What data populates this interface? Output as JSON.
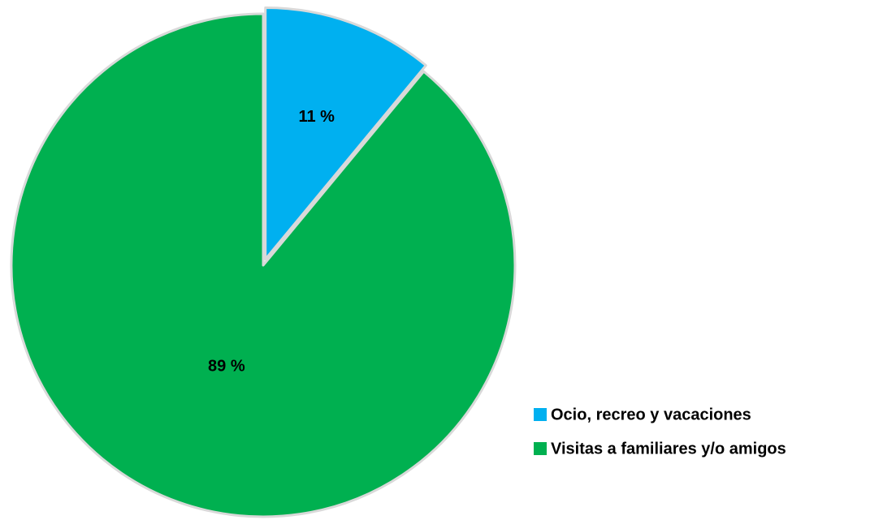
{
  "chart_data": {
    "type": "pie",
    "categories": [
      "Ocio, recreo y vacaciones",
      "Visitas a familiares y/o amigos"
    ],
    "values": [
      11,
      89
    ],
    "value_labels": [
      "11 %",
      "89 %"
    ],
    "colors": [
      "#00b0f0",
      "#00b050"
    ],
    "legend": "right"
  }
}
